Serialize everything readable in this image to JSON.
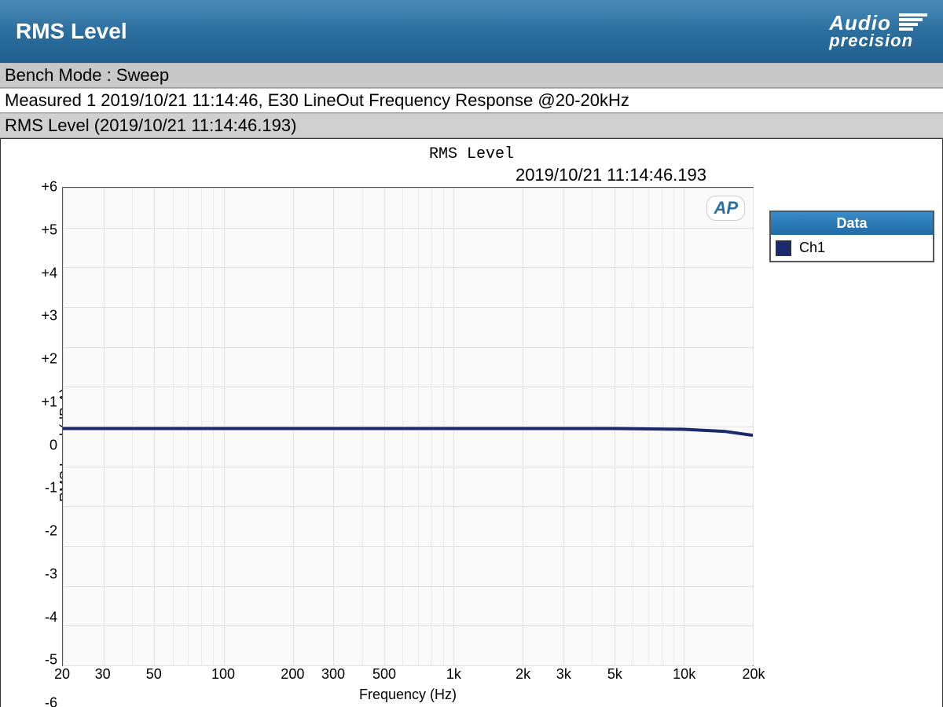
{
  "header": {
    "title": "RMS Level",
    "logo_top": "Audio",
    "logo_bottom": "precision"
  },
  "bench_mode_line": "Bench Mode : Sweep",
  "measured_line": "Measured 1     2019/10/21 11:14:46, E30 LineOut Frequency Response @20-20kHz",
  "section_title": "RMS Level (2019/10/21 11:14:46.193)",
  "chart": {
    "type": "line",
    "title": "RMS Level",
    "timestamp": "2019/10/21 11:14:46.193",
    "x_axis": {
      "label": "Frequency (Hz)",
      "scale": "log",
      "min": 20,
      "max": 20000,
      "ticks": [
        {
          "v": 20,
          "label": "20"
        },
        {
          "v": 30,
          "label": "30"
        },
        {
          "v": 50,
          "label": "50"
        },
        {
          "v": 100,
          "label": "100"
        },
        {
          "v": 200,
          "label": "200"
        },
        {
          "v": 300,
          "label": "300"
        },
        {
          "v": 500,
          "label": "500"
        },
        {
          "v": 1000,
          "label": "1k"
        },
        {
          "v": 2000,
          "label": "2k"
        },
        {
          "v": 3000,
          "label": "3k"
        },
        {
          "v": 5000,
          "label": "5k"
        },
        {
          "v": 10000,
          "label": "10k"
        },
        {
          "v": 20000,
          "label": "20k"
        }
      ],
      "minor_ticks": [
        40,
        60,
        70,
        80,
        90,
        400,
        600,
        700,
        800,
        900,
        4000,
        6000,
        7000,
        8000,
        9000
      ]
    },
    "y_axis": {
      "label": "RMS Level (dBrA)",
      "scale": "linear",
      "min": -6,
      "max": 6,
      "tick_step": 1,
      "ticks": [
        {
          "v": 6,
          "label": "+6"
        },
        {
          "v": 5,
          "label": "+5"
        },
        {
          "v": 4,
          "label": "+4"
        },
        {
          "v": 3,
          "label": "+3"
        },
        {
          "v": 2,
          "label": "+2"
        },
        {
          "v": 1,
          "label": "+1"
        },
        {
          "v": 0,
          "label": "0"
        },
        {
          "v": -1,
          "label": "-1"
        },
        {
          "v": -2,
          "label": "-2"
        },
        {
          "v": -3,
          "label": "-3"
        },
        {
          "v": -4,
          "label": "-4"
        },
        {
          "v": -5,
          "label": "-5"
        },
        {
          "v": -6,
          "label": "-6"
        }
      ]
    },
    "series": [
      {
        "name": "Ch1",
        "color": "#1a2a6c",
        "line_width": 2,
        "points": [
          {
            "x": 20,
            "y": -0.05
          },
          {
            "x": 50,
            "y": -0.05
          },
          {
            "x": 100,
            "y": -0.05
          },
          {
            "x": 500,
            "y": -0.05
          },
          {
            "x": 1000,
            "y": -0.05
          },
          {
            "x": 5000,
            "y": -0.05
          },
          {
            "x": 10000,
            "y": -0.07
          },
          {
            "x": 15000,
            "y": -0.12
          },
          {
            "x": 20000,
            "y": -0.22
          }
        ]
      }
    ],
    "grid_color": "#e0e0e0",
    "background_color": "#fafafa",
    "border_color": "#555555",
    "watermark_text": "AP",
    "watermark_color": "#2b6f9e"
  },
  "legend": {
    "header": "Data",
    "items": [
      {
        "label": "Ch1",
        "color": "#1a2a6c"
      }
    ],
    "header_bg": "#2b7bb5",
    "header_fg": "#ffffff"
  },
  "colors": {
    "header_gradient_top": "#4a8ab8",
    "header_gradient_bottom": "#1f5e8d",
    "bench_bg": "#c8c8c8",
    "section_bg": "#d0d0d0",
    "text": "#000000"
  }
}
